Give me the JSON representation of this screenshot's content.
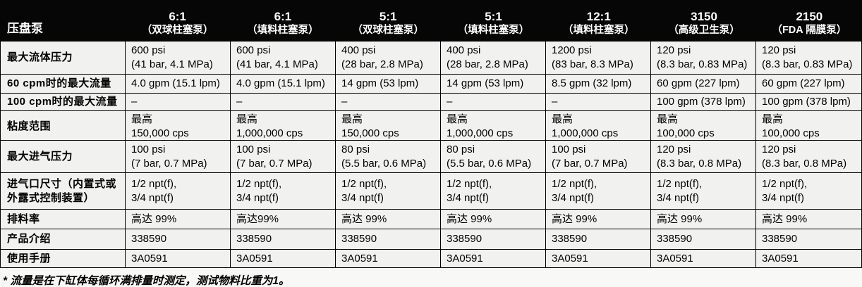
{
  "table": {
    "corner_label": "压盘泵",
    "columns": [
      {
        "ratio": "6:1",
        "type": "（双球柱塞泵）"
      },
      {
        "ratio": "6:1",
        "type": "（填料柱塞泵）"
      },
      {
        "ratio": "5:1",
        "type": "（双球柱塞泵）"
      },
      {
        "ratio": "5:1",
        "type": "（填料柱塞泵）"
      },
      {
        "ratio": "12:1",
        "type": "（填料柱塞泵）"
      },
      {
        "ratio": "3150",
        "type": "（高级卫生泵）"
      },
      {
        "ratio": "2150",
        "type": "（FDA 隔膜泵）"
      }
    ],
    "rows": [
      {
        "label": "最大流体压力",
        "values": [
          [
            "600 psi",
            "(41 bar, 4.1 MPa)"
          ],
          [
            "600 psi",
            "(41 bar, 4.1 MPa)"
          ],
          [
            "400 psi",
            "(28 bar, 2.8 MPa)"
          ],
          [
            "400 psi",
            "(28 bar, 2.8 MPa)"
          ],
          [
            "1200 psi",
            "(83 bar, 8.3 MPa)"
          ],
          [
            "120 psi",
            "(8.3 bar, 0.83 MPa)"
          ],
          [
            "120 psi",
            "(8.3 bar, 0.83 MPa)"
          ]
        ]
      },
      {
        "label": "60 cpm时的最大流量",
        "values": [
          [
            "4.0 gpm (15.1 lpm)"
          ],
          [
            "4.0 gpm (15.1 lpm)"
          ],
          [
            "14 gpm (53 lpm)"
          ],
          [
            "14 gpm (53 lpm)"
          ],
          [
            "8.5 gpm (32 lpm)"
          ],
          [
            "60 gpm (227 lpm)"
          ],
          [
            "60 gpm (227 lpm)"
          ]
        ]
      },
      {
        "label": "100 cpm时的最大流量",
        "values": [
          [
            "–"
          ],
          [
            "–"
          ],
          [
            "–"
          ],
          [
            "–"
          ],
          [
            "–"
          ],
          [
            "100 gpm (378 lpm)"
          ],
          [
            "100 gpm (378 lpm)"
          ]
        ]
      },
      {
        "label": "粘度范围",
        "values": [
          [
            "最高",
            "150,000 cps"
          ],
          [
            "最高",
            "1,000,000 cps"
          ],
          [
            "最高",
            "150,000 cps"
          ],
          [
            "最高",
            "1,000,000 cps"
          ],
          [
            "最高",
            "1,000,000 cps"
          ],
          [
            "最高",
            "100,000 cps"
          ],
          [
            "最高",
            "100,000 cps"
          ]
        ]
      },
      {
        "label": "最大进气压力",
        "values": [
          [
            "100 psi",
            "(7 bar, 0.7 MPa)"
          ],
          [
            "100 psi",
            "(7 bar, 0.7 MPa)"
          ],
          [
            "80 psi",
            "(5.5 bar, 0.6 MPa)"
          ],
          [
            "80 psi",
            "(5.5 bar, 0.6 MPa)"
          ],
          [
            "100 psi",
            "(7 bar, 0.7 MPa)"
          ],
          [
            "120 psi",
            "(8.3 bar, 0.8 MPa)"
          ],
          [
            "120 psi",
            "(8.3 bar, 0.8 MPa)"
          ]
        ]
      },
      {
        "label": "进气口尺寸（内置式或外露式控制装置）",
        "values": [
          [
            "1/2 npt(f),",
            "3/4 npt(f)"
          ],
          [
            "1/2 npt(f),",
            "3/4 npt(f)"
          ],
          [
            "1/2 npt(f),",
            "3/4 npt(f)"
          ],
          [
            "1/2 npt(f),",
            "3/4 npt(f)"
          ],
          [
            "1/2 npt(f),",
            "3/4 npt(f)"
          ],
          [
            "1/2 npt(f),",
            "3/4 npt(f)"
          ],
          [
            "1/2 npt(f),",
            "3/4 npt(f)"
          ]
        ]
      },
      {
        "label": "排料率",
        "values": [
          [
            "高达 99%"
          ],
          [
            "高达99%"
          ],
          [
            "高达 99%"
          ],
          [
            "高达 99%"
          ],
          [
            "高达 99%"
          ],
          [
            "高达 99%"
          ],
          [
            "高达 99%"
          ]
        ]
      },
      {
        "label": "产品介绍",
        "values": [
          [
            "338590"
          ],
          [
            "338590"
          ],
          [
            "338590"
          ],
          [
            "338590"
          ],
          [
            "338590"
          ],
          [
            "338590"
          ],
          [
            "338590"
          ]
        ]
      },
      {
        "label": "使用手册",
        "values": [
          [
            "3A0591"
          ],
          [
            "3A0591"
          ],
          [
            "3A0591"
          ],
          [
            "3A0591"
          ],
          [
            "3A0591"
          ],
          [
            "3A0591"
          ],
          [
            "3A0591"
          ]
        ]
      }
    ],
    "footnote": "* 流量是在下缸体每循环满排量时测定，测试物料比重为1。"
  },
  "colors": {
    "header_bg": "#060606",
    "header_text": "#ffffff",
    "cell_bg": "#f1f1f0",
    "border": "#000000",
    "body_text": "#000000"
  }
}
